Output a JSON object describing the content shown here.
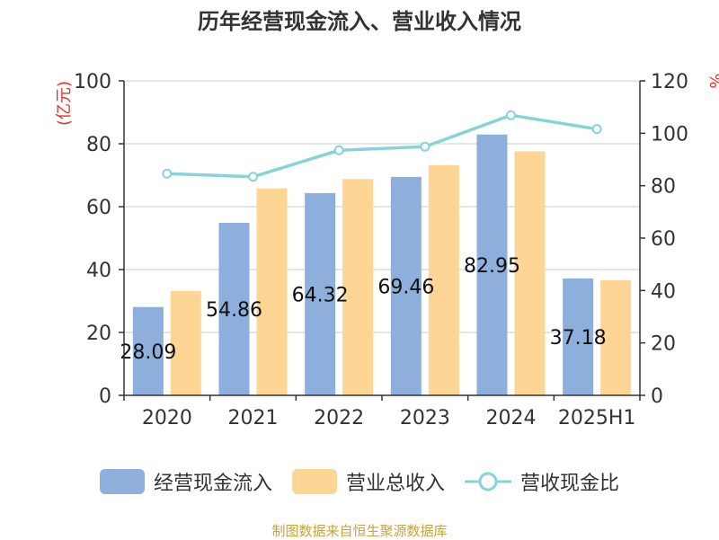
{
  "chart_data": {
    "type": "bar",
    "title": "历年经营现金流入、营业收入情况",
    "categories": [
      "2020",
      "2021",
      "2022",
      "2023",
      "2024",
      "2025H1"
    ],
    "ylabel_left": "(亿元)",
    "ylabel_right": "%",
    "ylim_left": [
      0,
      100
    ],
    "yticks_left": [
      "0",
      "20",
      "40",
      "60",
      "80",
      "100"
    ],
    "ylim_right": [
      0,
      120
    ],
    "yticks_right": [
      "0",
      "20",
      "40",
      "60",
      "80",
      "100",
      "120"
    ],
    "grid": true,
    "legend_position": "bottom",
    "series": [
      {
        "name": "经营现金流入",
        "kind": "bar",
        "axis": "left",
        "color": "#8eaedb",
        "values": [
          28.09,
          54.86,
          64.32,
          69.46,
          82.95,
          37.18
        ],
        "labels": [
          "28.09",
          "54.86",
          "64.32",
          "69.46",
          "82.95",
          "37.18"
        ]
      },
      {
        "name": "营业总收入",
        "kind": "bar",
        "axis": "left",
        "color": "#fdd595",
        "values": [
          33.2,
          65.8,
          68.8,
          73.2,
          77.6,
          36.6
        ]
      },
      {
        "name": "营收现金比",
        "kind": "line",
        "axis": "right",
        "color": "#86d3d9",
        "values": [
          84.6,
          83.4,
          93.5,
          94.9,
          106.9,
          101.6
        ]
      }
    ]
  },
  "source": "制图数据来自恒生聚源数据库"
}
